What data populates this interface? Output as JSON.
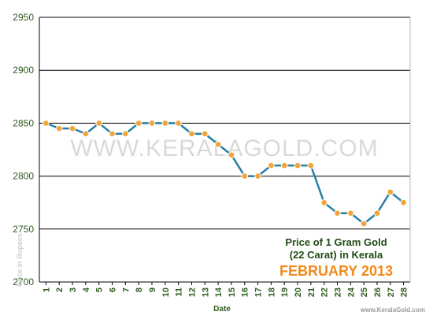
{
  "chart_data": {
    "type": "line",
    "title_line1": "Price of 1 Gram Gold",
    "title_line2": "(22 Carat) in Kerala",
    "subtitle": "FEBRUARY 2013",
    "xlabel": "Date",
    "ylabel": "Price in Rupees",
    "watermark": "WWW.KERALAGOLD.COM",
    "source_url": "www.KeralaGold.com",
    "ylim": [
      2700,
      2950
    ],
    "yticks": [
      2700,
      2750,
      2800,
      2850,
      2900,
      2950
    ],
    "x": [
      1,
      2,
      3,
      4,
      5,
      6,
      7,
      8,
      9,
      10,
      11,
      12,
      13,
      14,
      15,
      16,
      17,
      18,
      19,
      20,
      21,
      22,
      23,
      24,
      25,
      26,
      27,
      28
    ],
    "values": [
      2850,
      2845,
      2845,
      2840,
      2850,
      2840,
      2840,
      2850,
      2850,
      2850,
      2850,
      2840,
      2840,
      2830,
      2820,
      2800,
      2800,
      2810,
      2810,
      2810,
      2810,
      2775,
      2765,
      2765,
      2755,
      2765,
      2785,
      2775
    ],
    "colors": {
      "line": "#2a7fa6",
      "marker_fill": "#f2a33a",
      "marker_stroke": "#ffffff",
      "axis_text": "#2f5c1e",
      "title_text": "#1f4d14",
      "subtitle_text": "#f28a1a",
      "grid": "#000000",
      "watermark": "#d9d9d9",
      "ylabel_text": "#cfcfcf"
    }
  }
}
